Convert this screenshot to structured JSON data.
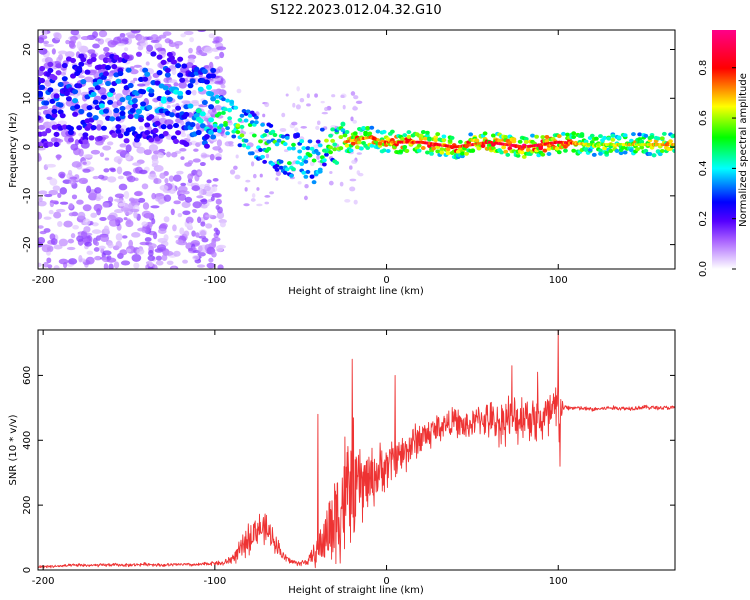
{
  "chart_data": [
    {
      "type": "heatmap",
      "title": "S122.2023.012.04.32.G10",
      "xlabel": "Height of straight line (km)",
      "ylabel": "Frequency (Hz)",
      "xlim": [
        -203,
        168
      ],
      "ylim": [
        -25,
        24
      ],
      "xticks": [
        -200,
        -100,
        0,
        100
      ],
      "yticks": [
        -20,
        -10,
        0,
        10,
        20
      ],
      "grid": false,
      "colorbar": {
        "label": "Normalized spectral amplitude",
        "range": [
          0,
          0.95
        ],
        "ticks": [
          0.0,
          0.2,
          0.4,
          0.6,
          0.8
        ],
        "colors": [
          "#ffffff",
          "#8800ff",
          "#2200ff",
          "#00ffff",
          "#00ff00",
          "#ffff00",
          "#ff0000",
          "#ff0088"
        ]
      },
      "ridge": {
        "x": [
          -200,
          -180,
          -160,
          -140,
          -120,
          -100,
          -90,
          -80,
          -70,
          -60,
          -50,
          -40,
          -35,
          -30,
          -25,
          -10,
          0,
          20,
          40,
          60,
          80,
          100,
          120,
          140,
          168
        ],
        "frequency": [
          9,
          10,
          10,
          10.5,
          10,
          7,
          5,
          3,
          1,
          -1,
          -2,
          -3,
          2,
          0,
          1,
          2,
          1,
          1,
          0,
          1,
          0,
          1,
          0.5,
          0.5,
          0.5
        ],
        "amplitude": [
          0.35,
          0.4,
          0.45,
          0.45,
          0.45,
          0.55,
          0.55,
          0.55,
          0.5,
          0.55,
          0.5,
          0.5,
          0.55,
          0.55,
          0.7,
          0.75,
          0.75,
          0.8,
          0.8,
          0.8,
          0.85,
          0.85,
          0.6,
          0.65,
          0.7
        ]
      }
    },
    {
      "type": "line",
      "title": "",
      "xlabel": "Height of straight line (km)",
      "ylabel": "SNR (10 * v/v)",
      "xlim": [
        -203,
        168
      ],
      "ylim": [
        0,
        740
      ],
      "xticks": [
        -200,
        -100,
        0,
        100
      ],
      "yticks": [
        0,
        200,
        400,
        600
      ],
      "grid": false,
      "color": "#ee3333",
      "series": [
        {
          "x": [
            -203,
            -190,
            -180,
            -170,
            -160,
            -150,
            -140,
            -130,
            -120,
            -110,
            -100,
            -95,
            -90,
            -85,
            -80,
            -75,
            -70,
            -65,
            -60,
            -55,
            -50,
            -45,
            -40,
            -35,
            -30,
            -25,
            -20,
            -15,
            -10,
            -5,
            0,
            5,
            10,
            15,
            20,
            25,
            30,
            35,
            40,
            45,
            50,
            55,
            60,
            65,
            70,
            75,
            80,
            85,
            90,
            95,
            100,
            103,
            110,
            120,
            130,
            140,
            150,
            160,
            168
          ],
          "values": [
            10,
            12,
            15,
            14,
            16,
            15,
            18,
            15,
            17,
            16,
            22,
            20,
            35,
            60,
            100,
            130,
            120,
            90,
            40,
            25,
            20,
            30,
            60,
            110,
            160,
            220,
            250,
            260,
            280,
            300,
            320,
            350,
            360,
            390,
            410,
            420,
            440,
            450,
            460,
            440,
            450,
            470,
            460,
            450,
            470,
            460,
            480,
            470,
            460,
            470,
            490,
            500,
            500,
            495,
            500,
            498,
            502,
            500,
            500
          ],
          "spread": [
            5,
            5,
            6,
            6,
            6,
            6,
            6,
            6,
            6,
            6,
            8,
            10,
            20,
            40,
            60,
            60,
            60,
            40,
            20,
            10,
            10,
            20,
            60,
            120,
            200,
            250,
            250,
            150,
            120,
            100,
            90,
            80,
            80,
            70,
            70,
            60,
            60,
            50,
            50,
            60,
            50,
            60,
            70,
            80,
            90,
            90,
            90,
            90,
            90,
            120,
            150,
            10,
            8,
            8,
            8,
            8,
            8,
            8,
            8
          ],
          "peaks": [
            {
              "x": -20,
              "y": 650
            },
            {
              "x": -40,
              "y": 480
            },
            {
              "x": 5,
              "y": 600
            },
            {
              "x": 73,
              "y": 630
            },
            {
              "x": 88,
              "y": 610
            },
            {
              "x": 100,
              "y": 740
            },
            {
              "x": 101,
              "y": 320
            }
          ]
        }
      ]
    }
  ]
}
